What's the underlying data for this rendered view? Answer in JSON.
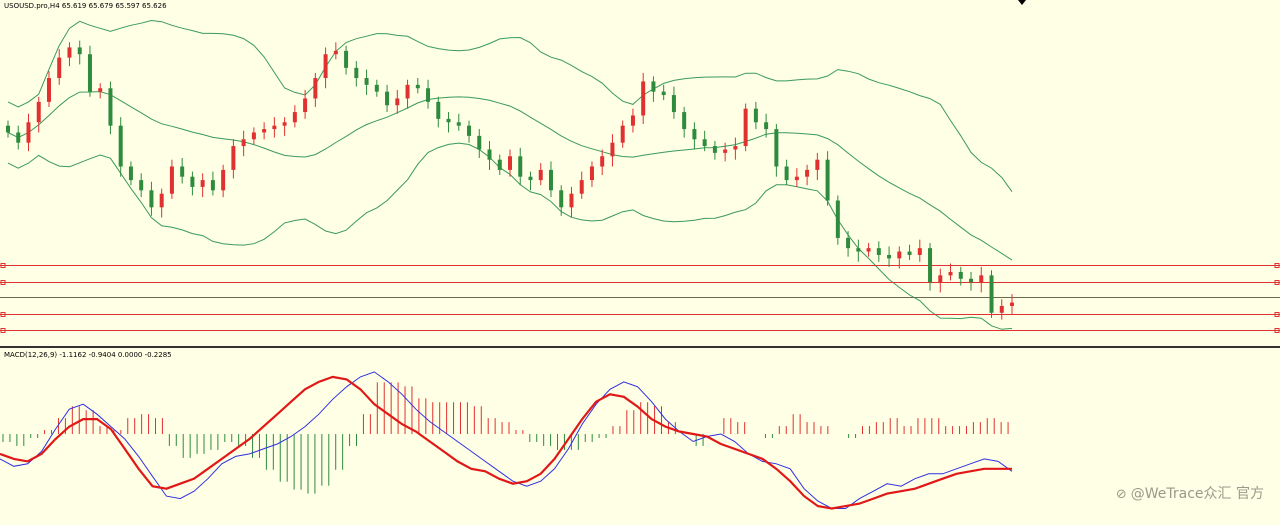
{
  "chart_data": {
    "type": "candlestick",
    "symbol": "USOUSD.pro,H4",
    "title": "USOUSD.pro,H4",
    "ohlc_readout": "65.619 65.679 65.597 65.626",
    "main_pane": {
      "ylim": [
        63.5,
        73.2
      ],
      "bollinger_bands": true,
      "horizontal_levels": [
        {
          "value": 65.7,
          "color": "#e03030"
        },
        {
          "value": 65.2,
          "color": "#e03030"
        },
        {
          "value": 64.75,
          "color": "#6b6b50"
        },
        {
          "value": 64.25,
          "color": "#e03030"
        },
        {
          "value": 63.8,
          "color": "#e03030"
        }
      ],
      "candle_closes": [
        69.6,
        69.3,
        69.9,
        70.5,
        71.2,
        71.8,
        72.1,
        71.9,
        70.8,
        70.9,
        69.8,
        68.6,
        68.2,
        67.9,
        67.4,
        67.8,
        68.6,
        68.3,
        68.0,
        68.2,
        67.9,
        68.5,
        69.2,
        69.4,
        69.6,
        69.7,
        69.8,
        69.9,
        70.2,
        70.6,
        71.2,
        71.9,
        72.0,
        71.5,
        71.2,
        71.0,
        70.8,
        70.4,
        70.6,
        71.0,
        70.9,
        70.5,
        70.0,
        69.9,
        69.8,
        69.5,
        69.1,
        68.8,
        68.5,
        68.9,
        68.3,
        68.2,
        68.5,
        67.9,
        67.4,
        67.8,
        68.2,
        68.6,
        68.9,
        69.3,
        69.8,
        70.1,
        71.1,
        70.8,
        70.7,
        70.2,
        69.7,
        69.4,
        69.2,
        69.0,
        69.1,
        69.2,
        70.3,
        69.9,
        69.7,
        68.6,
        68.2,
        68.3,
        68.5,
        68.8,
        67.6,
        66.5,
        66.2,
        66.1,
        66.2,
        66.0,
        65.9,
        66.1,
        66.0,
        66.2,
        65.2,
        65.4,
        65.5,
        65.3,
        65.2,
        65.4,
        64.3,
        64.5,
        64.6
      ],
      "candle_colors": {
        "up": "#e03030",
        "down": "#2e8b3e"
      }
    },
    "macd": {
      "label": "MACD(12,26,9) -1.1162 -0.9404 0.0000 -0.2285",
      "params": "12,26,9",
      "values": [
        -1.1162,
        -0.9404,
        0.0,
        -0.2285
      ],
      "ylim": [
        -3.3,
        2.9
      ],
      "series": [
        {
          "name": "MACD",
          "color": "#3030e0",
          "values": [
            -1.0,
            -1.3,
            -1.2,
            -0.7,
            0.2,
            1.0,
            1.2,
            0.8,
            0.3,
            -0.2,
            -0.9,
            -1.7,
            -2.5,
            -2.6,
            -2.3,
            -1.8,
            -1.2,
            -0.9,
            -0.8,
            -0.6,
            -0.4,
            -0.1,
            0.3,
            0.8,
            1.4,
            1.9,
            2.3,
            2.5,
            2.1,
            1.6,
            1.0,
            0.5,
            0.1,
            -0.3,
            -0.7,
            -1.1,
            -1.5,
            -1.9,
            -2.1,
            -1.9,
            -1.4,
            -0.6,
            0.4,
            1.2,
            1.8,
            2.1,
            1.9,
            1.3,
            0.6,
            0.1,
            -0.3,
            -0.1,
            0.0,
            -0.3,
            -0.8,
            -1.1,
            -1.2,
            -1.4,
            -2.2,
            -2.7,
            -3.0,
            -3.0,
            -2.6,
            -2.3,
            -2.0,
            -2.1,
            -1.8,
            -1.6,
            -1.6,
            -1.4,
            -1.2,
            -1.0,
            -1.1,
            -1.5
          ]
        },
        {
          "name": "Signal",
          "color": "#e01818",
          "values": [
            -0.8,
            -1.0,
            -1.1,
            -0.8,
            -0.2,
            0.3,
            0.6,
            0.6,
            0.2,
            -0.6,
            -1.4,
            -2.1,
            -2.2,
            -2.0,
            -1.8,
            -1.4,
            -1.0,
            -0.6,
            -0.2,
            0.3,
            0.8,
            1.3,
            1.8,
            2.1,
            2.3,
            2.2,
            1.8,
            1.2,
            0.8,
            0.4,
            0.1,
            -0.3,
            -0.7,
            -1.1,
            -1.4,
            -1.5,
            -1.8,
            -2.0,
            -1.9,
            -1.6,
            -1.0,
            -0.2,
            0.6,
            1.3,
            1.6,
            1.5,
            1.1,
            0.6,
            0.3,
            0.1,
            0.0,
            -0.1,
            -0.4,
            -0.6,
            -0.8,
            -1.0,
            -1.4,
            -1.9,
            -2.5,
            -2.9,
            -3.0,
            -2.9,
            -2.8,
            -2.6,
            -2.4,
            -2.3,
            -2.2,
            -2.0,
            -1.8,
            -1.6,
            -1.5,
            -1.4,
            -1.4,
            -1.4
          ]
        }
      ],
      "histogram_colors": {
        "positive": "#e03030",
        "negative": "#2e8b3e"
      }
    }
  },
  "watermark": {
    "text": "@WeTrace众汇 官方",
    "icon": "wetrace-logo-icon"
  },
  "colors": {
    "background": "#ffffe6",
    "band": "#3a9a5a"
  }
}
